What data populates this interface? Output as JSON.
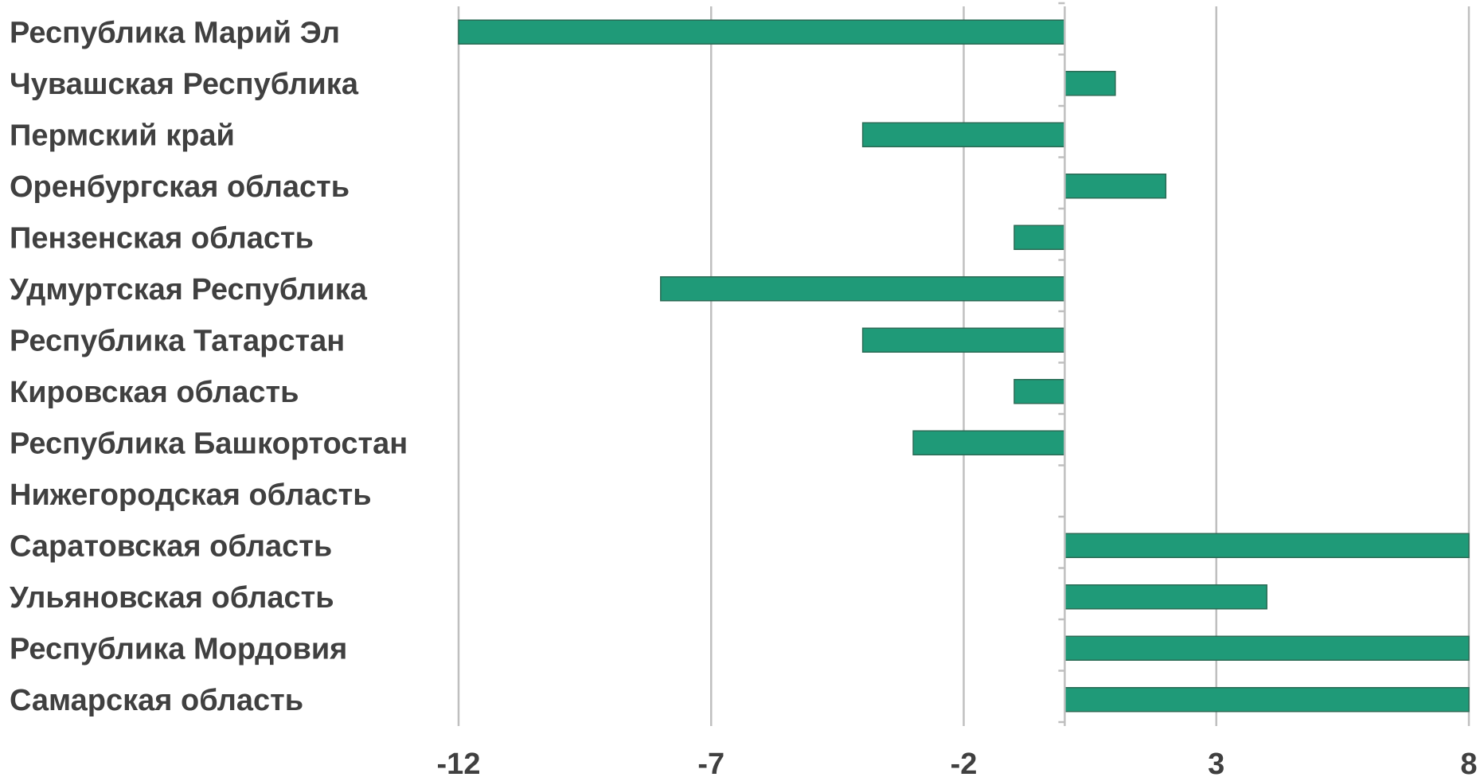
{
  "chart_data": {
    "type": "bar",
    "orientation": "horizontal",
    "title": "",
    "xlabel": "",
    "ylabel": "",
    "categories": [
      "Республика Марий Эл",
      "Чувашская Республика",
      "Пермский край",
      "Оренбургская область",
      "Пензенская область",
      "Удмуртская Республика",
      "Республика Татарстан",
      "Кировская область",
      "Республика Башкортостан",
      "Нижегородская область",
      "Саратовская область",
      "Ульяновская область",
      "Республика Мордовия",
      "Самарская область"
    ],
    "values": [
      -12,
      1,
      -4,
      2,
      -1,
      -8,
      -4,
      -1,
      -3,
      0,
      8,
      4,
      8,
      8
    ],
    "xlim": [
      -12,
      8
    ],
    "x_ticks": [
      -12,
      -7,
      -2,
      3,
      8
    ],
    "x_tick_labels": [
      "-12",
      "-7",
      "-2",
      "3",
      "8"
    ],
    "grid": true,
    "legend": "none",
    "bar_color": "#1f9a78",
    "bar_edge_color": "#2b6b55",
    "grid_color": "#bfbfbf",
    "label_color": "#404040"
  }
}
